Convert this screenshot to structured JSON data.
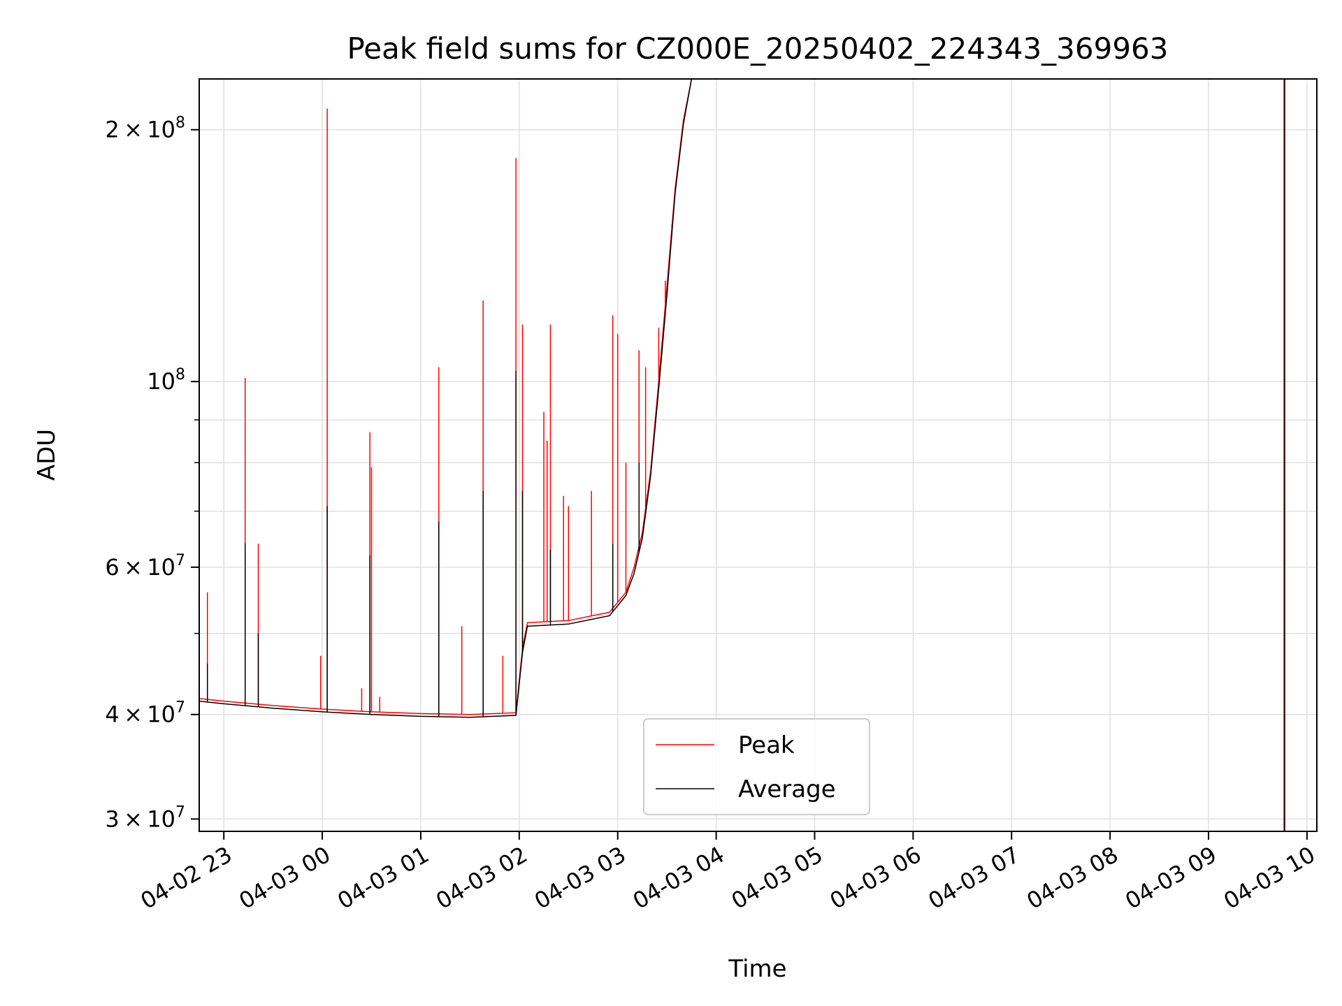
{
  "chart_data": {
    "type": "line",
    "title": "Peak field sums for CZ000E_20250402_224343_369963",
    "xlabel": "Time",
    "ylabel": "ADU",
    "yscale": "log",
    "xlim": [
      "2025-04-02 22:45",
      "2025-04-03 10:06"
    ],
    "ylim": [
      29000000,
      230000000
    ],
    "grid": true,
    "legend": {
      "position": "bottom-center",
      "entries": [
        "Peak",
        "Average"
      ]
    },
    "colors": {
      "Peak": "#ff0000",
      "Average": "#000000",
      "grid": "#e0e0e0",
      "axes": "#000000"
    },
    "x_ticks": [
      {
        "t": "2025-04-02 23:00",
        "label": "04-02 23"
      },
      {
        "t": "2025-04-03 00:00",
        "label": "04-03 00"
      },
      {
        "t": "2025-04-03 01:00",
        "label": "04-03 01"
      },
      {
        "t": "2025-04-03 02:00",
        "label": "04-03 02"
      },
      {
        "t": "2025-04-03 03:00",
        "label": "04-03 03"
      },
      {
        "t": "2025-04-03 04:00",
        "label": "04-03 04"
      },
      {
        "t": "2025-04-03 05:00",
        "label": "04-03 05"
      },
      {
        "t": "2025-04-03 06:00",
        "label": "04-03 06"
      },
      {
        "t": "2025-04-03 07:00",
        "label": "04-03 07"
      },
      {
        "t": "2025-04-03 08:00",
        "label": "04-03 08"
      },
      {
        "t": "2025-04-03 09:00",
        "label": "04-03 09"
      },
      {
        "t": "2025-04-03 10:00",
        "label": "04-03 10"
      }
    ],
    "y_ticks_major": [
      {
        "value": 30000000,
        "mant": "3",
        "exp": "7"
      },
      {
        "value": 40000000,
        "mant": "4",
        "exp": "7"
      },
      {
        "value": 60000000,
        "mant": "6",
        "exp": "7"
      },
      {
        "value": 100000000,
        "mant": "",
        "exp": "8"
      },
      {
        "value": 200000000,
        "mant": "2",
        "exp": "8"
      }
    ],
    "y_ticks_minor": [
      50000000,
      70000000,
      80000000,
      90000000
    ],
    "series": [
      {
        "name": "Peak",
        "x": [
          "2025-04-02 22:45",
          "2025-04-02 23:00",
          "2025-04-02 23:30",
          "2025-04-03 00:00",
          "2025-04-03 00:30",
          "2025-04-03 01:00",
          "2025-04-03 01:30",
          "2025-04-03 01:58",
          "2025-04-03 02:02",
          "2025-04-03 02:05",
          "2025-04-03 02:30",
          "2025-04-03 02:55",
          "2025-04-03 03:05",
          "2025-04-03 03:10",
          "2025-04-03 03:15",
          "2025-04-03 03:20",
          "2025-04-03 03:25",
          "2025-04-03 03:30",
          "2025-04-03 03:35",
          "2025-04-03 03:40",
          "2025-04-03 03:45",
          "2025-04-03 09:45"
        ],
        "values": [
          41800000,
          41500000,
          41000000,
          40600000,
          40300000,
          40100000,
          40000000,
          40200000,
          48000000,
          51500000,
          51800000,
          53000000,
          56000000,
          60000000,
          66000000,
          78000000,
          100000000,
          130000000,
          170000000,
          205000000,
          230000000,
          230000000
        ],
        "spikes": [
          {
            "t": "2025-04-02 22:50",
            "value": 56000000
          },
          {
            "t": "2025-04-02 23:13",
            "value": 101000000
          },
          {
            "t": "2025-04-02 23:21",
            "value": 64000000
          },
          {
            "t": "2025-04-02 23:59",
            "value": 47000000
          },
          {
            "t": "2025-04-03 00:03",
            "value": 212000000
          },
          {
            "t": "2025-04-03 00:24",
            "value": 43000000
          },
          {
            "t": "2025-04-03 00:29",
            "value": 87000000
          },
          {
            "t": "2025-04-03 00:30",
            "value": 79000000
          },
          {
            "t": "2025-04-03 00:35",
            "value": 42000000
          },
          {
            "t": "2025-04-03 01:11",
            "value": 104000000
          },
          {
            "t": "2025-04-03 01:25",
            "value": 51000000
          },
          {
            "t": "2025-04-03 01:38",
            "value": 125000000
          },
          {
            "t": "2025-04-03 01:50",
            "value": 47000000
          },
          {
            "t": "2025-04-03 01:58",
            "value": 185000000
          },
          {
            "t": "2025-04-03 02:02",
            "value": 117000000
          },
          {
            "t": "2025-04-03 02:15",
            "value": 92000000
          },
          {
            "t": "2025-04-03 02:17",
            "value": 85000000
          },
          {
            "t": "2025-04-03 02:19",
            "value": 117000000
          },
          {
            "t": "2025-04-03 02:27",
            "value": 73000000
          },
          {
            "t": "2025-04-03 02:30",
            "value": 71000000
          },
          {
            "t": "2025-04-03 02:44",
            "value": 74000000
          },
          {
            "t": "2025-04-03 02:57",
            "value": 120000000
          },
          {
            "t": "2025-04-03 03:00",
            "value": 114000000
          },
          {
            "t": "2025-04-03 03:05",
            "value": 80000000
          },
          {
            "t": "2025-04-03 03:13",
            "value": 109000000
          },
          {
            "t": "2025-04-03 03:17",
            "value": 104000000
          },
          {
            "t": "2025-04-03 03:25",
            "value": 116000000
          },
          {
            "t": "2025-04-03 03:29",
            "value": 132000000
          },
          {
            "t": "2025-04-03 03:33",
            "value": 150000000
          }
        ]
      },
      {
        "name": "Average",
        "x": [
          "2025-04-02 22:45",
          "2025-04-02 23:00",
          "2025-04-02 23:30",
          "2025-04-03 00:00",
          "2025-04-03 00:30",
          "2025-04-03 01:00",
          "2025-04-03 01:30",
          "2025-04-03 01:58",
          "2025-04-03 02:02",
          "2025-04-03 02:05",
          "2025-04-03 02:30",
          "2025-04-03 02:55",
          "2025-04-03 03:05",
          "2025-04-03 03:10",
          "2025-04-03 03:15",
          "2025-04-03 03:20",
          "2025-04-03 03:25",
          "2025-04-03 03:30",
          "2025-04-03 03:35",
          "2025-04-03 03:40",
          "2025-04-03 03:45",
          "2025-04-03 09:45"
        ],
        "values": [
          41500000,
          41200000,
          40700000,
          40300000,
          40000000,
          39800000,
          39700000,
          39900000,
          47500000,
          51000000,
          51300000,
          52500000,
          55500000,
          59000000,
          65000000,
          77000000,
          98000000,
          127000000,
          168000000,
          203000000,
          230000000,
          230000000
        ],
        "spikes": [
          {
            "t": "2025-04-02 22:50",
            "value": 46000000
          },
          {
            "t": "2025-04-02 23:13",
            "value": 64000000
          },
          {
            "t": "2025-04-02 23:21",
            "value": 50000000
          },
          {
            "t": "2025-04-03 00:03",
            "value": 71000000
          },
          {
            "t": "2025-04-03 00:29",
            "value": 62000000
          },
          {
            "t": "2025-04-03 01:11",
            "value": 68000000
          },
          {
            "t": "2025-04-03 01:38",
            "value": 74000000
          },
          {
            "t": "2025-04-03 01:58",
            "value": 103000000
          },
          {
            "t": "2025-04-03 02:02",
            "value": 74000000
          },
          {
            "t": "2025-04-03 02:19",
            "value": 63000000
          },
          {
            "t": "2025-04-03 02:57",
            "value": 64000000
          },
          {
            "t": "2025-04-03 03:13",
            "value": 80000000
          }
        ]
      }
    ],
    "end_drop": {
      "t": "2025-04-03 09:46",
      "from": 230000000,
      "to": 29000000
    }
  }
}
